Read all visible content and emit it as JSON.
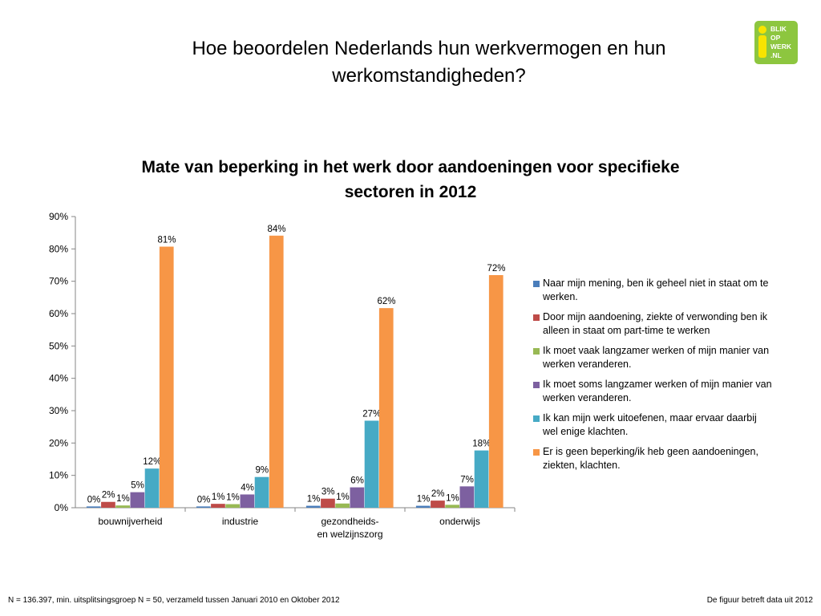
{
  "slide": {
    "title": "Hoe beoordelen Nederlands hun werkvermogen en hun werkomstandigheden?",
    "footer_left": "N = 136.397, min. uitsplitsingsgroep N = 50, verzameld tussen Januari 2010 en Oktober 2012",
    "footer_right": "De figuur betreft data uit  2012"
  },
  "logo": {
    "lines": [
      "BLIK",
      "OP",
      "WERK",
      ".NL"
    ],
    "colors": {
      "background": "#8dc63f",
      "accent": "#f7e400",
      "text": "#ffffff"
    }
  },
  "chart_data": {
    "type": "bar",
    "title": "Mate van beperking in het werk door aandoeningen voor specifieke sectoren in 2012",
    "categories": [
      "bouwnijverheid",
      "industrie",
      "gezondheids- en welzijnszorg",
      "onderwijs"
    ],
    "ylim": [
      0,
      90
    ],
    "yticks": [
      "0%",
      "10%",
      "20%",
      "30%",
      "40%",
      "50%",
      "60%",
      "70%",
      "80%",
      "90%"
    ],
    "grid": false,
    "legend_position": "right",
    "series": [
      {
        "name": "Naar mijn mening, ben ik geheel niet in staat om te werken.",
        "color": "#4a7ebb",
        "values": [
          0.4,
          0.4,
          0.6,
          0.6
        ],
        "labels": [
          "0%",
          "0%",
          "1%",
          "1%"
        ]
      },
      {
        "name": "Door mijn aandoening, ziekte of verwonding ben ik alleen in staat om part-time te werken",
        "color": "#be4b48",
        "values": [
          1.8,
          1.2,
          2.8,
          2.2
        ],
        "labels": [
          "2%",
          "1%",
          "3%",
          "2%"
        ]
      },
      {
        "name": "Ik moet vaak langzamer werken of mijn manier van werken veranderen.",
        "color": "#98b954",
        "values": [
          0.7,
          1.1,
          1.3,
          0.9
        ],
        "labels": [
          "1%",
          "1%",
          "1%",
          "1%"
        ]
      },
      {
        "name": "Ik moet soms langzamer werken of mijn manier van werken veranderen.",
        "color": "#7d60a0",
        "values": [
          4.8,
          4.1,
          6.3,
          6.6
        ],
        "labels": [
          "5%",
          "4%",
          "6%",
          "7%"
        ]
      },
      {
        "name": "Ik kan mijn werk uitoefenen, maar ervaar daarbij wel enige klachten.",
        "color": "#46aac5",
        "values": [
          12.1,
          9.5,
          26.9,
          17.7
        ],
        "labels": [
          "12%",
          "9%",
          "27%",
          "18%"
        ]
      },
      {
        "name": "Er is geen beperking/ik heb geen aandoeningen, ziekten, klachten.",
        "color": "#f79646",
        "values": [
          80.7,
          84.1,
          61.7,
          71.9
        ],
        "labels": [
          "81%",
          "84%",
          "62%",
          "72%"
        ]
      }
    ]
  }
}
